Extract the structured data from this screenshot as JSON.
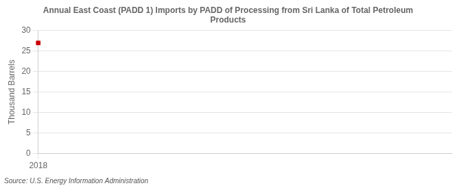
{
  "chart_data": {
    "type": "scatter",
    "title": "Annual East Coast (PADD 1) Imports by PADD of Processing from Sri Lanka of Total Petroleum\nProducts",
    "ylabel": "Thousand Barrels",
    "source": "Source: U.S. Energy Information Administration",
    "x": [
      2018
    ],
    "values": [
      27
    ],
    "color": "#cc0000",
    "marker": "square",
    "xlim": [
      2018,
      2019
    ],
    "xticks": [
      2018
    ],
    "ylim": [
      0,
      30
    ],
    "yticks": [
      0,
      5,
      10,
      15,
      20,
      25,
      30
    ],
    "grid": true
  }
}
